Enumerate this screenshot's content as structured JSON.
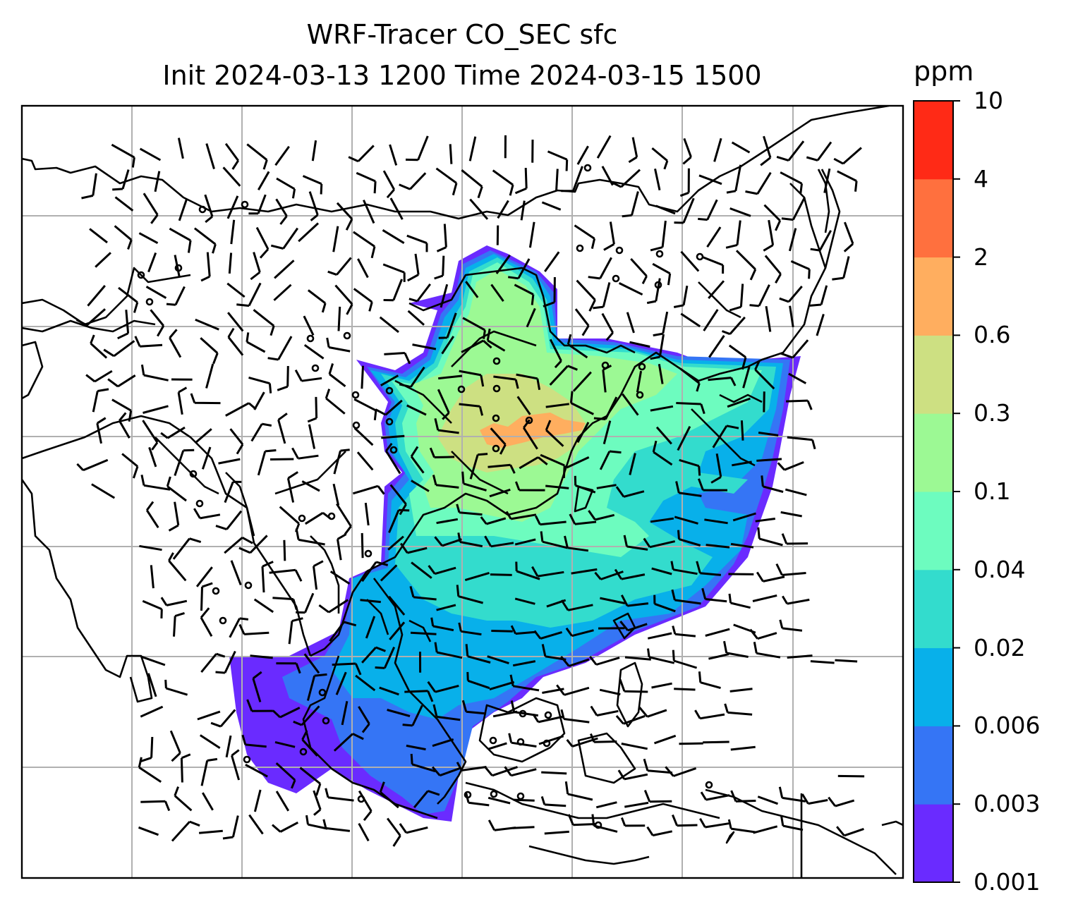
{
  "title": {
    "line1": "WRF-Tracer CO_SEC sfc",
    "line2": "Init 2024-03-13 1200 Time 2024-03-15 1500"
  },
  "colorbar": {
    "unit": "ppm",
    "levels": [
      "0.001",
      "0.003",
      "0.006",
      "0.02",
      "0.04",
      "0.1",
      "0.3",
      "0.6",
      "2",
      "4",
      "10"
    ],
    "colors": [
      "#6a2bff",
      "#3575f5",
      "#08b0ea",
      "#33dccd",
      "#6dfcbf",
      "#9cf994",
      "#cde082",
      "#ffae5f",
      "#ff703e",
      "#ff2a16"
    ]
  },
  "map": {
    "gridlines": true,
    "grid_color": "#b0b0b0",
    "coastline_color": "#000000",
    "wind_barb_color": "#000000"
  }
}
